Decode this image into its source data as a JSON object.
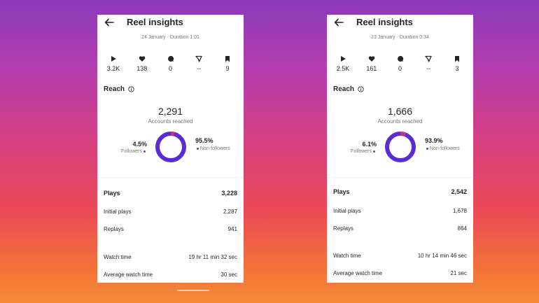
{
  "colors": {
    "donut_followers": "#c13584",
    "donut_non_followers": "#5b2bd6",
    "dot": "#a322c9"
  },
  "icons": {
    "back": "arrow-left-icon",
    "plays": "play-icon",
    "likes": "heart-icon",
    "comments": "comment-icon",
    "shares": "send-icon",
    "saves": "bookmark-icon",
    "info": "info-icon"
  },
  "cards": [
    {
      "title": "Reel insights",
      "meta": "24 January · Duration 1:01",
      "stats": {
        "plays": "3.2K",
        "likes": "138",
        "comments": "0",
        "shares": "--",
        "saves": "9"
      },
      "reach_label": "Reach",
      "accounts_reached": "2,291",
      "accounts_reached_label": "Accounts reached",
      "followers_pct": "4.5%",
      "followers_label": "Followers",
      "followers_fraction": 0.045,
      "non_followers_pct": "95.5%",
      "non_followers_label": "Non-followers",
      "plays_label": "Plays",
      "plays_total": "3,228",
      "initial_plays_label": "Initial plays",
      "initial_plays": "2,287",
      "replays_label": "Replays",
      "replays": "941",
      "watch_time_label": "Watch time",
      "watch_time": "19 hr 11 min 32 sec",
      "avg_watch_time_label": "Average watch time",
      "avg_watch_time": "30 sec"
    },
    {
      "title": "Reel insights",
      "meta": "23 January · Duration 0:34",
      "stats": {
        "plays": "2.5K",
        "likes": "161",
        "comments": "0",
        "shares": "--",
        "saves": "3"
      },
      "reach_label": "Reach",
      "accounts_reached": "1,666",
      "accounts_reached_label": "Accounts reached",
      "followers_pct": "6.1%",
      "followers_label": "Followers",
      "followers_fraction": 0.061,
      "non_followers_pct": "93.9%",
      "non_followers_label": "Non-followers",
      "plays_label": "Plays",
      "plays_total": "2,542",
      "initial_plays_label": "Initial plays",
      "initial_plays": "1,678",
      "replays_label": "Replays",
      "replays": "864",
      "watch_time_label": "Watch time",
      "watch_time": "10 hr 14 min 46 sec",
      "avg_watch_time_label": "Average watch time",
      "avg_watch_time": "21 sec"
    }
  ]
}
